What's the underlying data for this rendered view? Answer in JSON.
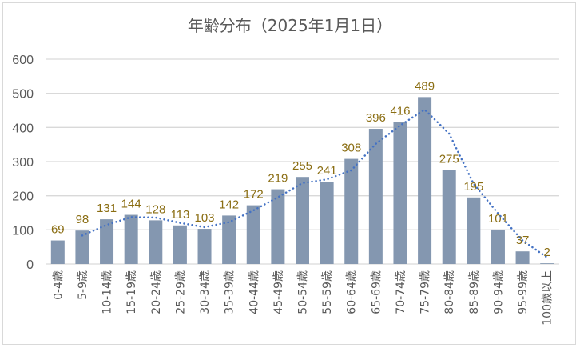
{
  "chart_data": {
    "type": "bar",
    "title": "年齢分布（2025年1月1日）",
    "xlabel": "",
    "ylabel": "",
    "ylim": [
      0,
      600
    ],
    "yticks": [
      0,
      100,
      200,
      300,
      400,
      500,
      600
    ],
    "grid": true,
    "categories": [
      "0-4歳",
      "5-9歳",
      "10-14歳",
      "15-19歳",
      "20-24歳",
      "25-29歳",
      "30-34歳",
      "35-39歳",
      "40-44歳",
      "45-49歳",
      "50-54歳",
      "55-59歳",
      "60-64歳",
      "65-69歳",
      "70-74歳",
      "75-79歳",
      "80-84歳",
      "85-89歳",
      "90-94歳",
      "95-99歳",
      "100歳以上"
    ],
    "values": [
      69,
      98,
      131,
      144,
      128,
      113,
      103,
      142,
      172,
      219,
      255,
      241,
      308,
      396,
      416,
      489,
      275,
      195,
      101,
      37,
      2
    ],
    "trendline": "2-period moving average, dotted",
    "colors": {
      "bar": "#8497b0",
      "label": "#8a6d12",
      "trend": "#4472c4",
      "grid": "#d9d9d9",
      "text": "#595959"
    }
  }
}
